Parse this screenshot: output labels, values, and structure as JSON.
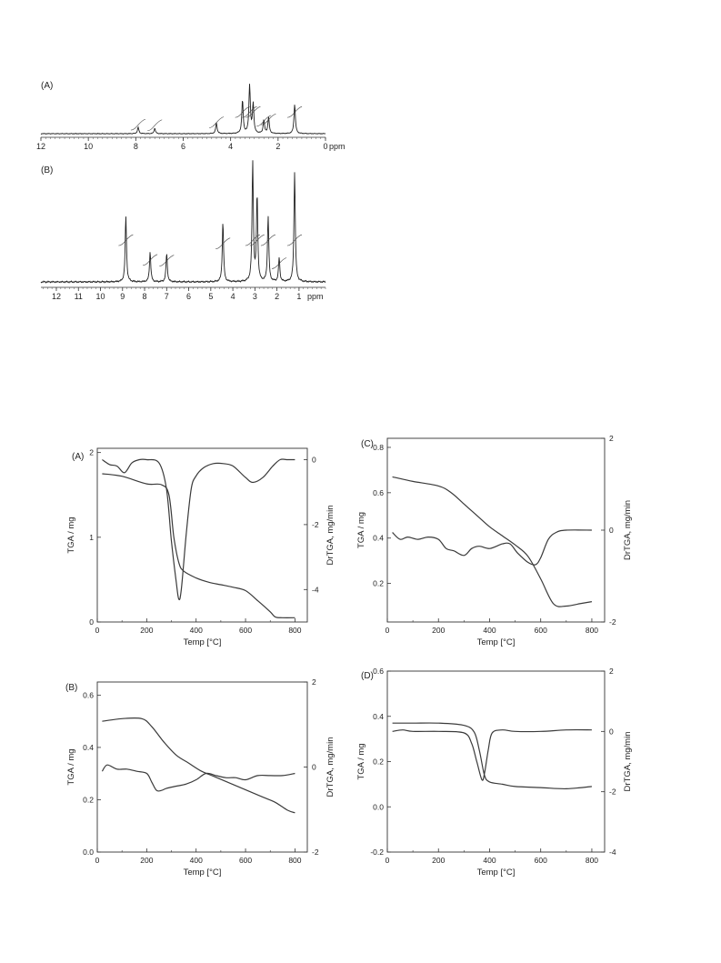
{
  "chart_data": [
    {
      "id": "nmr-A",
      "type": "line",
      "panel_label": "(A)",
      "xlabel": "ppm",
      "x_reversed": true,
      "xlim": [
        12,
        0
      ],
      "x_ticks": [
        12,
        10,
        8,
        6,
        4,
        2,
        0
      ],
      "series": [
        {
          "peaks": [
            {
              "x": 7.9,
              "h": 0.12
            },
            {
              "x": 7.2,
              "h": 0.1
            },
            {
              "x": 4.6,
              "h": 0.2
            },
            {
              "x": 3.5,
              "h": 0.62
            },
            {
              "x": 3.2,
              "h": 0.9
            },
            {
              "x": 3.05,
              "h": 0.55
            },
            {
              "x": 2.6,
              "h": 0.25
            },
            {
              "x": 2.4,
              "h": 0.3
            },
            {
              "x": 1.3,
              "h": 0.55
            }
          ]
        }
      ]
    },
    {
      "id": "nmr-B",
      "type": "line",
      "panel_label": "(B)",
      "xlabel": "ppm",
      "x_reversed": true,
      "xlim": [
        12.7,
        -0.2
      ],
      "x_ticks": [
        12,
        11,
        10,
        9,
        8,
        7,
        6,
        5,
        4,
        3,
        2,
        1
      ],
      "series": [
        {
          "peaks": [
            {
              "x": 8.85,
              "h": 0.55
            },
            {
              "x": 7.75,
              "h": 0.25
            },
            {
              "x": 7.0,
              "h": 0.24
            },
            {
              "x": 4.45,
              "h": 0.5
            },
            {
              "x": 3.1,
              "h": 1.0
            },
            {
              "x": 2.9,
              "h": 0.72
            },
            {
              "x": 2.4,
              "h": 0.55
            },
            {
              "x": 1.9,
              "h": 0.2
            },
            {
              "x": 1.2,
              "h": 0.92
            }
          ]
        }
      ]
    },
    {
      "id": "tga-A",
      "type": "line",
      "panel_label": "(A)",
      "xlabel": "Temp [°C]",
      "ylabel": "TGA / mg",
      "y2label": "DrTGA, mg/min",
      "xlim": [
        0,
        850
      ],
      "ylim": [
        0,
        2.05
      ],
      "y2lim": [
        -5.0,
        0.35
      ],
      "x_ticks": [
        0,
        200,
        400,
        600,
        800
      ],
      "y_ticks": [
        0,
        1,
        2
      ],
      "y2_ticks": [
        0,
        -2,
        -4
      ],
      "series": [
        {
          "name": "TGA",
          "axis": "left",
          "x": [
            20,
            100,
            200,
            260,
            290,
            310,
            330,
            350,
            400,
            450,
            500,
            550,
            600,
            650,
            700,
            720,
            750,
            800
          ],
          "y": [
            1.75,
            1.72,
            1.63,
            1.62,
            1.5,
            1.0,
            0.7,
            0.6,
            0.52,
            0.47,
            0.44,
            0.41,
            0.37,
            0.25,
            0.12,
            0.06,
            0.05,
            0.05
          ]
        },
        {
          "name": "DrTGA",
          "axis": "right",
          "x": [
            20,
            50,
            80,
            110,
            140,
            170,
            200,
            250,
            280,
            300,
            320,
            330,
            340,
            360,
            380,
            400,
            430,
            470,
            510,
            550,
            600,
            630,
            670,
            710,
            740,
            770,
            800
          ],
          "y": [
            0.0,
            -0.15,
            -0.2,
            -0.4,
            -0.1,
            0.0,
            0.0,
            -0.1,
            -0.9,
            -2.5,
            -3.8,
            -4.3,
            -4.0,
            -2.3,
            -0.9,
            -0.5,
            -0.25,
            -0.12,
            -0.12,
            -0.2,
            -0.55,
            -0.7,
            -0.55,
            -0.2,
            0.0,
            0.0,
            0.0
          ]
        }
      ]
    },
    {
      "id": "tga-C",
      "type": "line",
      "panel_label": "(C)",
      "xlabel": "Temp [°C]",
      "ylabel": "TGA / mg",
      "y2label": "DrTGA, mg/min",
      "xlim": [
        0,
        850
      ],
      "ylim": [
        0.03,
        0.84
      ],
      "y2lim": [
        -2,
        2
      ],
      "x_ticks": [
        0,
        200,
        400,
        600,
        800
      ],
      "y_ticks": [
        0.2,
        0.4,
        0.6,
        0.8
      ],
      "y2_ticks": [
        2,
        0,
        -2
      ],
      "series": [
        {
          "name": "TGA",
          "axis": "left",
          "x": [
            20,
            100,
            200,
            250,
            300,
            350,
            400,
            450,
            500,
            550,
            600,
            650,
            700,
            750,
            800
          ],
          "y": [
            0.67,
            0.65,
            0.63,
            0.6,
            0.55,
            0.5,
            0.45,
            0.41,
            0.37,
            0.32,
            0.22,
            0.11,
            0.1,
            0.11,
            0.12
          ]
        },
        {
          "name": "DrTGA",
          "axis": "right",
          "x": [
            20,
            50,
            80,
            120,
            160,
            200,
            230,
            260,
            300,
            330,
            360,
            400,
            450,
            480,
            510,
            550,
            580,
            600,
            630,
            660,
            700,
            800
          ],
          "y": [
            -0.05,
            -0.2,
            -0.15,
            -0.2,
            -0.15,
            -0.2,
            -0.4,
            -0.45,
            -0.55,
            -0.4,
            -0.35,
            -0.4,
            -0.3,
            -0.3,
            -0.5,
            -0.7,
            -0.75,
            -0.6,
            -0.2,
            -0.05,
            0.0,
            0.0
          ]
        }
      ]
    },
    {
      "id": "tga-B",
      "type": "line",
      "panel_label": "(B)",
      "xlabel": "Temp [°C]",
      "ylabel": "TGA / mg",
      "y2label": "DrTGA, mg/min",
      "xlim": [
        0,
        850
      ],
      "ylim": [
        0,
        0.65
      ],
      "y2lim": [
        -2,
        2
      ],
      "x_ticks": [
        0,
        200,
        400,
        600,
        800
      ],
      "y_ticks": [
        0.0,
        0.2,
        0.4,
        0.6
      ],
      "y2_ticks": [
        2,
        0,
        -2
      ],
      "series": [
        {
          "name": "TGA",
          "axis": "left",
          "x": [
            20,
            100,
            180,
            220,
            270,
            320,
            370,
            420,
            470,
            520,
            570,
            620,
            670,
            720,
            770,
            800
          ],
          "y": [
            0.5,
            0.51,
            0.51,
            0.48,
            0.42,
            0.37,
            0.34,
            0.31,
            0.29,
            0.27,
            0.25,
            0.23,
            0.21,
            0.19,
            0.16,
            0.15
          ]
        },
        {
          "name": "DrTGA",
          "axis": "right",
          "x": [
            20,
            40,
            80,
            120,
            160,
            200,
            220,
            240,
            260,
            280,
            320,
            360,
            400,
            440,
            480,
            520,
            560,
            600,
            650,
            700,
            750,
            800
          ],
          "y": [
            -0.1,
            0.05,
            -0.05,
            -0.05,
            -0.1,
            -0.15,
            -0.35,
            -0.55,
            -0.55,
            -0.5,
            -0.45,
            -0.4,
            -0.3,
            -0.15,
            -0.2,
            -0.25,
            -0.25,
            -0.3,
            -0.2,
            -0.2,
            -0.2,
            -0.15
          ]
        }
      ]
    },
    {
      "id": "tga-D",
      "type": "line",
      "panel_label": "(D)",
      "xlabel": "Temp [°C]",
      "ylabel": "TGA / mg",
      "y2label": "DrTGA, mg/min",
      "xlim": [
        0,
        850
      ],
      "ylim": [
        -0.2,
        0.6
      ],
      "y2lim": [
        -4,
        2
      ],
      "x_ticks": [
        0,
        200,
        400,
        600,
        800
      ],
      "y_ticks": [
        -0.2,
        0.0,
        0.2,
        0.4,
        0.6
      ],
      "y2_ticks": [
        2,
        0,
        -2,
        -4
      ],
      "series": [
        {
          "name": "TGA",
          "axis": "left",
          "x": [
            20,
            100,
            200,
            300,
            340,
            360,
            380,
            400,
            450,
            500,
            600,
            700,
            800
          ],
          "y": [
            0.37,
            0.37,
            0.37,
            0.36,
            0.33,
            0.25,
            0.14,
            0.11,
            0.1,
            0.09,
            0.085,
            0.08,
            0.09
          ]
        },
        {
          "name": "DrTGA",
          "axis": "right",
          "x": [
            20,
            60,
            100,
            200,
            300,
            330,
            350,
            370,
            380,
            395,
            410,
            450,
            500,
            600,
            700,
            800
          ],
          "y": [
            0.0,
            0.05,
            0.0,
            0.0,
            -0.05,
            -0.4,
            -1.0,
            -1.6,
            -1.4,
            -0.6,
            -0.05,
            0.05,
            0.0,
            0.0,
            0.05,
            0.05
          ]
        }
      ]
    }
  ]
}
